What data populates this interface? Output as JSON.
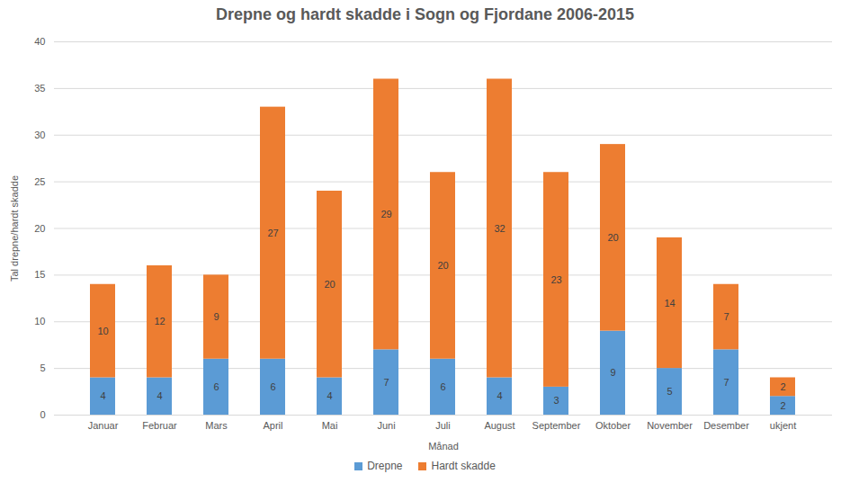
{
  "chart_data": {
    "type": "bar",
    "title": "Drepne og hardt skadde i Sogn og Fjordane 2006-2015",
    "x_label": "Månad",
    "y_label": "Tal drepne/hardt skadde",
    "categories": [
      "Januar",
      "Februar",
      "Mars",
      "April",
      "Mai",
      "Juni",
      "Juli",
      "August",
      "September",
      "Oktober",
      "November",
      "Desember",
      "ukjent"
    ],
    "series": [
      {
        "name": "Drepne",
        "color": "#5b9bd5",
        "values": [
          4,
          4,
          6,
          6,
          4,
          7,
          6,
          4,
          3,
          9,
          5,
          7,
          2
        ]
      },
      {
        "name": "Hardt skadde",
        "color": "#ed7d31",
        "values": [
          10,
          12,
          9,
          27,
          20,
          29,
          20,
          32,
          23,
          20,
          14,
          7,
          2
        ]
      }
    ],
    "ylim": [
      0,
      40
    ],
    "yticks": [
      0,
      5,
      10,
      15,
      20,
      25,
      30,
      35,
      40
    ],
    "grid": true,
    "stacked": true,
    "data_labels": true,
    "legend": "bottom"
  }
}
